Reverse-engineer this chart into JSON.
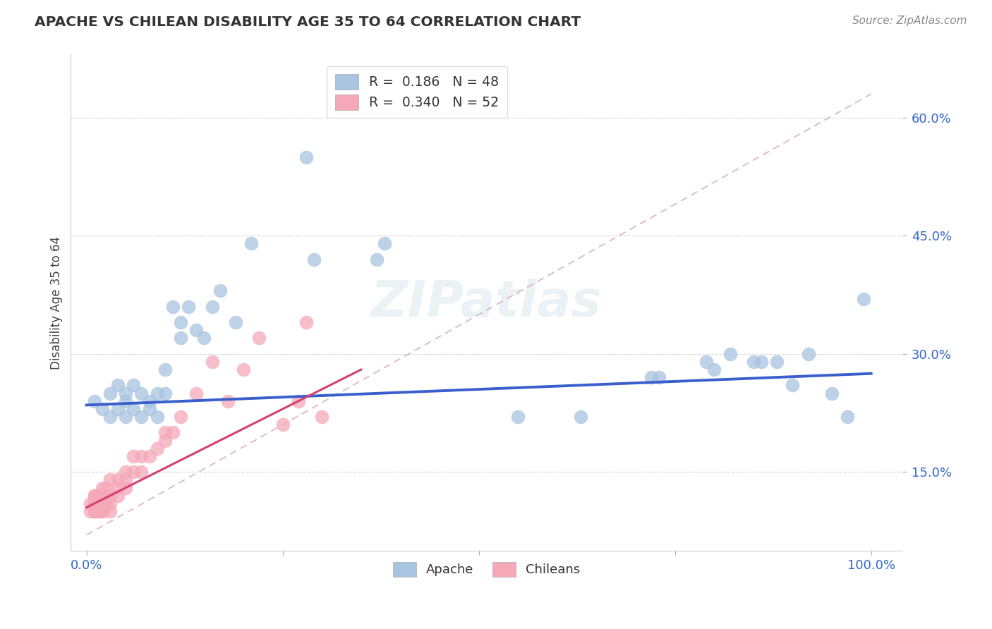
{
  "title": "APACHE VS CHILEAN DISABILITY AGE 35 TO 64 CORRELATION CHART",
  "source": "Source: ZipAtlas.com",
  "ylabel": "Disability Age 35 to 64",
  "xlim": [
    0.0,
    1.0
  ],
  "ylim": [
    0.05,
    0.68
  ],
  "yticks": [
    0.15,
    0.3,
    0.45,
    0.6
  ],
  "ytick_labels": [
    "15.0%",
    "30.0%",
    "45.0%",
    "60.0%"
  ],
  "xticks": [
    0.0,
    0.25,
    0.5,
    0.75,
    1.0
  ],
  "xtick_labels": [
    "0.0%",
    "",
    "",
    "",
    "100.0%"
  ],
  "apache_R": 0.186,
  "apache_N": 48,
  "chilean_R": 0.34,
  "chilean_N": 52,
  "apache_color": "#a8c4e0",
  "chilean_color": "#f4a8b8",
  "apache_line_color": "#3a5fcd",
  "chilean_line_color": "#d44070",
  "diagonal_color": "#d4a0a8",
  "background_color": "#ffffff",
  "apache_line_x0": 0.0,
  "apache_line_y0": 0.235,
  "apache_line_x1": 1.0,
  "apache_line_y1": 0.275,
  "chilean_line_x0": 0.0,
  "chilean_line_y0": 0.105,
  "chilean_line_x1": 0.3,
  "chilean_line_y1": 0.255,
  "apache_x": [
    0.01,
    0.02,
    0.03,
    0.03,
    0.04,
    0.04,
    0.05,
    0.05,
    0.05,
    0.06,
    0.06,
    0.07,
    0.07,
    0.08,
    0.08,
    0.09,
    0.09,
    0.1,
    0.1,
    0.11,
    0.12,
    0.12,
    0.13,
    0.14,
    0.15,
    0.16,
    0.17,
    0.19,
    0.21,
    0.28,
    0.29,
    0.37,
    0.38,
    0.55,
    0.63,
    0.72,
    0.73,
    0.79,
    0.8,
    0.82,
    0.85,
    0.86,
    0.88,
    0.9,
    0.92,
    0.95,
    0.97,
    0.99
  ],
  "apache_y": [
    0.24,
    0.23,
    0.25,
    0.22,
    0.26,
    0.23,
    0.22,
    0.25,
    0.24,
    0.23,
    0.26,
    0.22,
    0.25,
    0.24,
    0.23,
    0.25,
    0.22,
    0.28,
    0.25,
    0.36,
    0.34,
    0.32,
    0.36,
    0.33,
    0.32,
    0.36,
    0.38,
    0.34,
    0.44,
    0.55,
    0.42,
    0.42,
    0.44,
    0.22,
    0.22,
    0.27,
    0.27,
    0.29,
    0.28,
    0.3,
    0.29,
    0.29,
    0.29,
    0.26,
    0.3,
    0.25,
    0.22,
    0.37
  ],
  "chilean_x": [
    0.005,
    0.005,
    0.01,
    0.01,
    0.01,
    0.01,
    0.01,
    0.01,
    0.01,
    0.015,
    0.015,
    0.015,
    0.015,
    0.015,
    0.02,
    0.02,
    0.02,
    0.02,
    0.02,
    0.02,
    0.025,
    0.025,
    0.025,
    0.03,
    0.03,
    0.03,
    0.03,
    0.04,
    0.04,
    0.04,
    0.05,
    0.05,
    0.05,
    0.06,
    0.06,
    0.07,
    0.07,
    0.08,
    0.09,
    0.1,
    0.1,
    0.11,
    0.12,
    0.14,
    0.16,
    0.18,
    0.2,
    0.22,
    0.25,
    0.27,
    0.28,
    0.3
  ],
  "chilean_y": [
    0.1,
    0.11,
    0.1,
    0.11,
    0.12,
    0.1,
    0.1,
    0.11,
    0.12,
    0.1,
    0.11,
    0.12,
    0.1,
    0.11,
    0.1,
    0.11,
    0.12,
    0.1,
    0.11,
    0.13,
    0.12,
    0.13,
    0.11,
    0.1,
    0.12,
    0.11,
    0.14,
    0.12,
    0.14,
    0.13,
    0.14,
    0.13,
    0.15,
    0.15,
    0.17,
    0.17,
    0.15,
    0.17,
    0.18,
    0.19,
    0.2,
    0.2,
    0.22,
    0.25,
    0.29,
    0.24,
    0.28,
    0.32,
    0.21,
    0.24,
    0.34,
    0.22
  ]
}
